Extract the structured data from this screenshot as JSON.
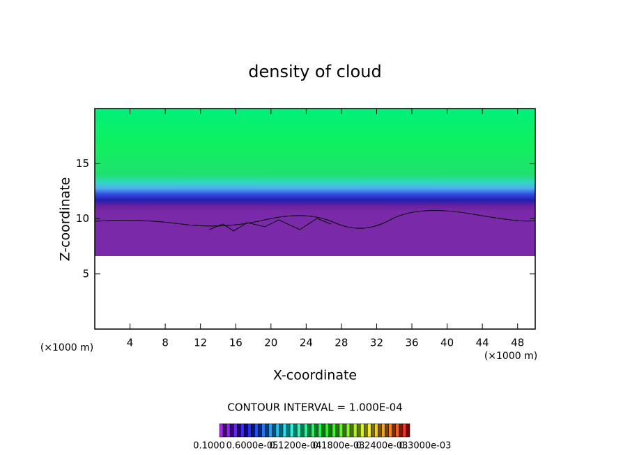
{
  "chart_data": {
    "type": "contour",
    "title": "density of cloud",
    "x_label": "X-coordinate",
    "y_label": "Z-coordinate",
    "x_unit_label": "(×1000 m)",
    "y_unit_label": "(×1000 m)",
    "xlim": [
      0,
      50
    ],
    "xticks": [
      4,
      8,
      12,
      16,
      20,
      24,
      28,
      32,
      36,
      40,
      44,
      48
    ],
    "ylim": [
      0,
      20
    ],
    "yticks": [
      5,
      10,
      15
    ],
    "contour_interval_label": "CONTOUR INTERVAL = 1.000E-04",
    "colorbar_labels": [
      "0.1000",
      "0.6000e-05",
      "0.1200e-04",
      "0.1800e-03",
      "0.2400e-03",
      "0.3000e-03"
    ]
  }
}
